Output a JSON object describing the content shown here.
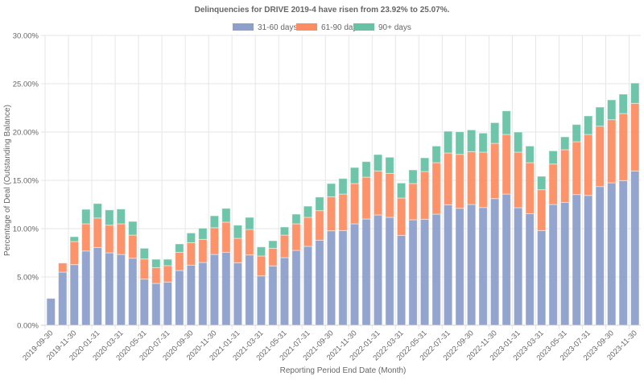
{
  "chart_data": {
    "type": "bar",
    "stacked": true,
    "title": "Delinquencies for DRIVE 2019-4 have risen from 23.92% to 25.07%.",
    "xlabel": "Reporting Period End Date (Month)",
    "ylabel": "Percentage of Deal (Outstanding Balance)",
    "ylim": [
      0,
      30
    ],
    "yticks": [
      "0.00%",
      "5.00%",
      "10.00%",
      "15.00%",
      "20.00%",
      "25.00%",
      "30.00%"
    ],
    "grid": true,
    "legend_position": "top",
    "categories": [
      "2019-09-30",
      "2019-10-31",
      "2019-11-30",
      "2019-12-31",
      "2020-01-31",
      "2020-02-29",
      "2020-03-31",
      "2020-04-30",
      "2020-05-31",
      "2020-06-30",
      "2020-07-31",
      "2020-08-31",
      "2020-09-30",
      "2020-10-31",
      "2020-11-30",
      "2020-12-31",
      "2021-01-31",
      "2021-02-28",
      "2021-03-31",
      "2021-04-30",
      "2021-05-31",
      "2021-06-30",
      "2021-07-31",
      "2021-08-31",
      "2021-09-30",
      "2021-10-31",
      "2021-11-30",
      "2021-12-31",
      "2022-01-31",
      "2022-02-28",
      "2022-03-31",
      "2022-04-30",
      "2022-05-31",
      "2022-06-30",
      "2022-07-31",
      "2022-08-31",
      "2022-09-30",
      "2022-10-31",
      "2022-11-30",
      "2022-12-31",
      "2023-01-31",
      "2023-02-28",
      "2023-03-31",
      "2023-04-30",
      "2023-05-31",
      "2023-06-30",
      "2023-07-31",
      "2023-08-31",
      "2023-09-30",
      "2023-10-31",
      "2023-11-30"
    ],
    "series": [
      {
        "name": "31-60 days",
        "color": "#8da0cb",
        "values": [
          2.78,
          5.5,
          6.28,
          7.69,
          8.05,
          7.5,
          7.33,
          6.94,
          4.78,
          4.33,
          4.47,
          5.67,
          6.22,
          6.5,
          7.33,
          7.55,
          6.47,
          7.28,
          5.11,
          6.14,
          7.0,
          7.75,
          8.17,
          8.8,
          9.78,
          9.8,
          10.5,
          11.0,
          11.42,
          11.17,
          9.3,
          10.92,
          10.97,
          11.5,
          12.47,
          12.11,
          12.5,
          12.19,
          13.11,
          13.58,
          12.17,
          11.55,
          9.8,
          12.5,
          12.72,
          13.53,
          13.44,
          14.36,
          14.75,
          14.97,
          15.97
        ]
      },
      {
        "name": "61-90 days",
        "color": "#fc8d62",
        "values": [
          0,
          0.94,
          2.39,
          2.81,
          3.05,
          2.86,
          3.17,
          2.39,
          2.08,
          1.64,
          1.7,
          1.88,
          2.33,
          2.39,
          2.77,
          3.12,
          2.53,
          2.64,
          2.06,
          1.83,
          2.33,
          2.75,
          3.0,
          3.06,
          3.52,
          3.78,
          4.17,
          4.33,
          4.55,
          4.55,
          3.87,
          3.75,
          4.95,
          5.33,
          5.36,
          5.58,
          5.47,
          5.73,
          5.72,
          6.17,
          5.75,
          5.28,
          4.23,
          4.19,
          5.45,
          5.47,
          6.31,
          6.25,
          6.53,
          6.95,
          7.0
        ]
      },
      {
        "name": "90+ days",
        "color": "#66c2a5",
        "values": [
          0,
          0,
          0.5,
          1.5,
          1.5,
          1.58,
          1.53,
          1.42,
          1.11,
          0.86,
          0.66,
          0.87,
          1.0,
          1.16,
          1.23,
          1.43,
          1.36,
          1.25,
          0.94,
          0.78,
          0.84,
          1.0,
          1.16,
          1.41,
          1.37,
          1.61,
          1.66,
          1.61,
          1.7,
          1.67,
          1.55,
          1.41,
          1.41,
          1.72,
          2.25,
          2.34,
          2.25,
          1.97,
          2.14,
          2.44,
          2.08,
          1.72,
          1.39,
          1.36,
          1.33,
          1.78,
          1.92,
          1.97,
          2.05,
          2.0,
          2.1
        ]
      }
    ]
  }
}
